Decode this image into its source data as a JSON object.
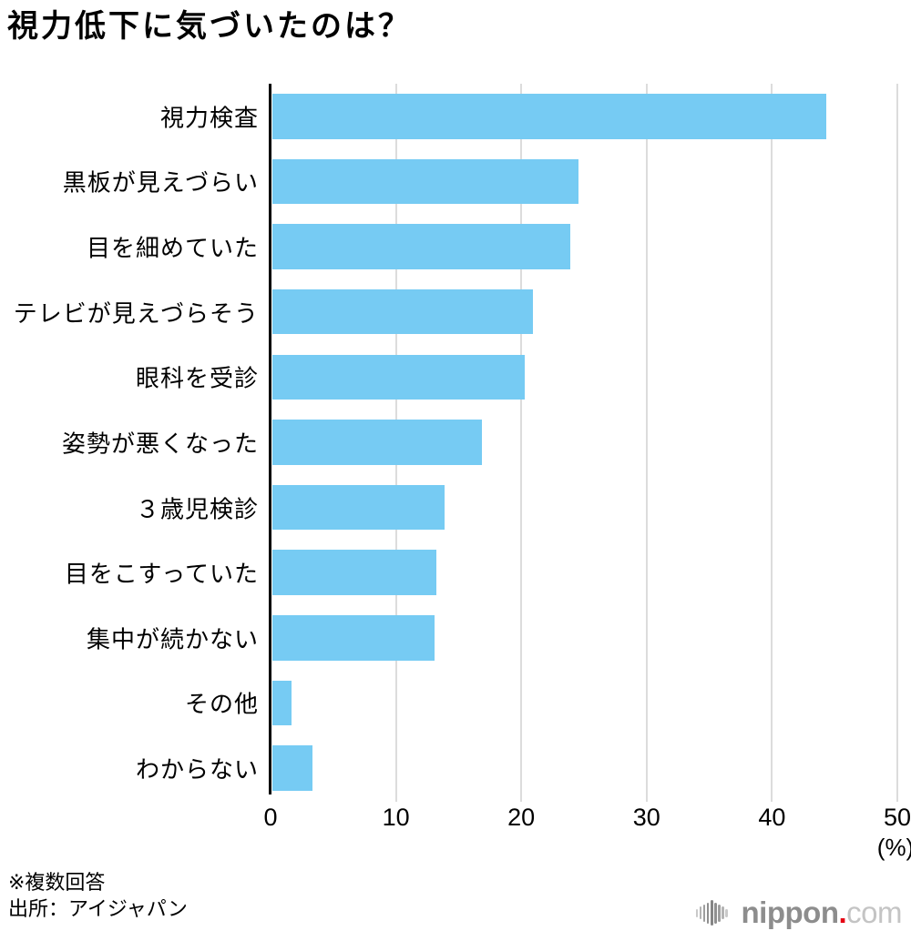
{
  "title": "視力低下に気づいたのは？",
  "chart_data": {
    "type": "bar",
    "orientation": "horizontal",
    "title": "視力低下に気づいたのは？",
    "categories": [
      "視力検査",
      "黒板が見えづらい",
      "目を細めていた",
      "テレビが見えづらそう",
      "眼科を受診",
      "姿勢が悪くなった",
      "３歳児検診",
      "目をこすっていた",
      "集中が続かない",
      "その他",
      "わからない"
    ],
    "values": [
      44.2,
      24.4,
      23.8,
      20.8,
      20.1,
      16.7,
      13.7,
      13.1,
      12.9,
      1.5,
      3.2
    ],
    "xlabel": "",
    "ylabel": "",
    "xlim": [
      0,
      50
    ],
    "x_ticks": [
      0,
      10,
      20,
      30,
      40,
      50
    ],
    "unit_label": "(%)",
    "grid": "vertical gridlines on",
    "legend": "none",
    "bar_color": "#76cbf3",
    "gridline_color": "#dcdcdc",
    "axis_color": "#000000"
  },
  "footer": {
    "note": "※複数回答",
    "source": "出所：アイジャパン"
  },
  "brand": {
    "text_main": "nippon",
    "text_dot": ".",
    "text_suffix": "com",
    "dot_color": "#e60012",
    "icon": "sound-wave-bars-icon",
    "icon_bar_heights": [
      9,
      14,
      19,
      23,
      28,
      23,
      19,
      14,
      9
    ],
    "icon_bar_colors": [
      "#c9c9c9",
      "#b3b3b3",
      "#9e9e9e",
      "#8f8f8f",
      "#858585",
      "#8f8f8f",
      "#9e9e9e",
      "#b3b3b3",
      "#c9c9c9"
    ]
  }
}
